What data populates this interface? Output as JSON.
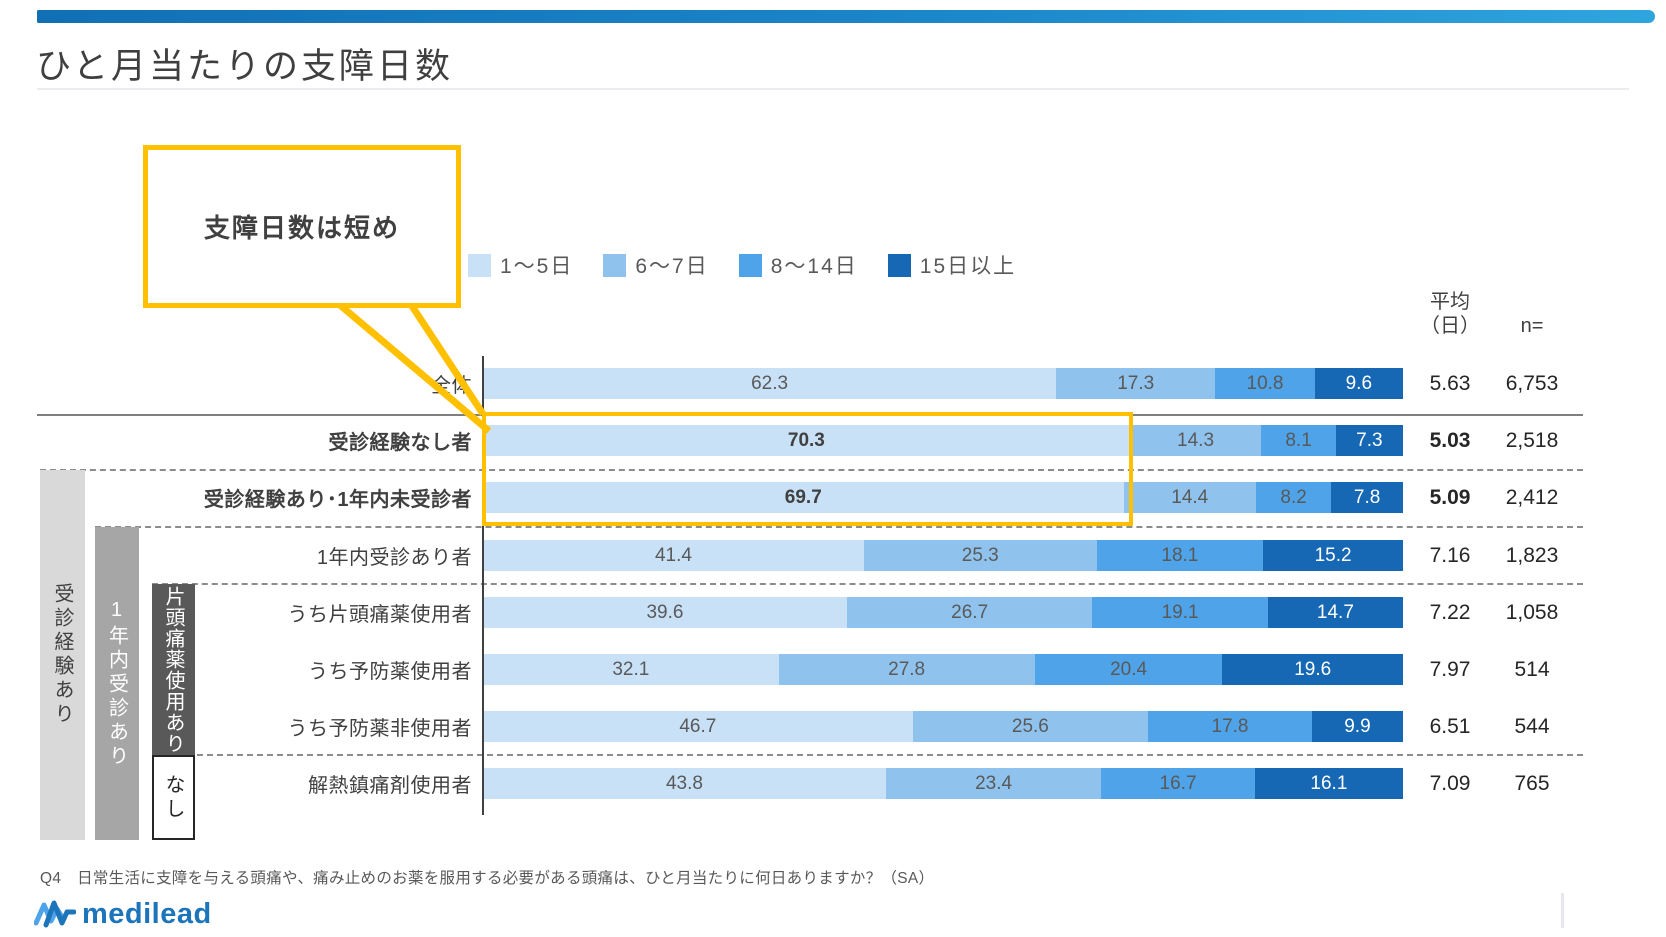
{
  "header": {
    "title": "ひと月当たりの支障日数"
  },
  "callout": {
    "text": "支障日数は短め"
  },
  "legend": [
    {
      "label": "1～5日",
      "color": "#C9E1F6"
    },
    {
      "label": "6～7日",
      "color": "#8FC3EE"
    },
    {
      "label": "8～14日",
      "color": "#4FA3E8"
    },
    {
      "label": "15日以上",
      "color": "#1668B4"
    }
  ],
  "columns": {
    "mean_header_line1": "平均",
    "mean_header_line2": "（日）",
    "n_header": "n="
  },
  "chart_data": {
    "type": "bar",
    "orientation": "horizontal-stacked",
    "unit": "%",
    "series_labels": [
      "1～5日",
      "6～7日",
      "8～14日",
      "15日以上"
    ],
    "series_colors": [
      "#C9E1F6",
      "#8FC3EE",
      "#4FA3E8",
      "#1668B4"
    ],
    "xlim": [
      0,
      100
    ],
    "rows": [
      {
        "label": "全体",
        "emphasis": false,
        "values": [
          62.3,
          17.3,
          10.8,
          9.6
        ],
        "mean": "5.63",
        "n": "6,753"
      },
      {
        "label": "受診経験なし者",
        "emphasis": true,
        "values": [
          70.3,
          14.3,
          8.1,
          7.3
        ],
        "mean": "5.03",
        "n": "2,518"
      },
      {
        "label": "受診経験あり･1年内未受診者",
        "emphasis": true,
        "values": [
          69.7,
          14.4,
          8.2,
          7.8
        ],
        "mean": "5.09",
        "n": "2,412"
      },
      {
        "label": "1年内受診あり者",
        "emphasis": false,
        "values": [
          41.4,
          25.3,
          18.1,
          15.2
        ],
        "mean": "7.16",
        "n": "1,823"
      },
      {
        "label": "うち片頭痛薬使用者",
        "emphasis": false,
        "values": [
          39.6,
          26.7,
          19.1,
          14.7
        ],
        "mean": "7.22",
        "n": "1,058"
      },
      {
        "label": "うち予防薬使用者",
        "emphasis": false,
        "values": [
          32.1,
          27.8,
          20.4,
          19.6
        ],
        "mean": "7.97",
        "n": "514"
      },
      {
        "label": "うち予防薬非使用者",
        "emphasis": false,
        "values": [
          46.7,
          25.6,
          17.8,
          9.9
        ],
        "mean": "6.51",
        "n": "544"
      },
      {
        "label": "解熱鎮痛剤使用者",
        "emphasis": false,
        "values": [
          43.8,
          23.4,
          16.7,
          16.1
        ],
        "mean": "7.09",
        "n": "765"
      }
    ]
  },
  "side_groups": [
    {
      "label": "受診経験あり"
    },
    {
      "label": "1年内受診あり"
    },
    {
      "label": "片頭痛薬使用あり"
    },
    {
      "label": "なし"
    }
  ],
  "footnote": "Q4　日常生活に支障を与える頭痛や、痛み止めのお薬を服用する必要がある頭痛は、ひと月当たりに何日ありますか？（SA）",
  "logo": {
    "text": "medilead"
  }
}
